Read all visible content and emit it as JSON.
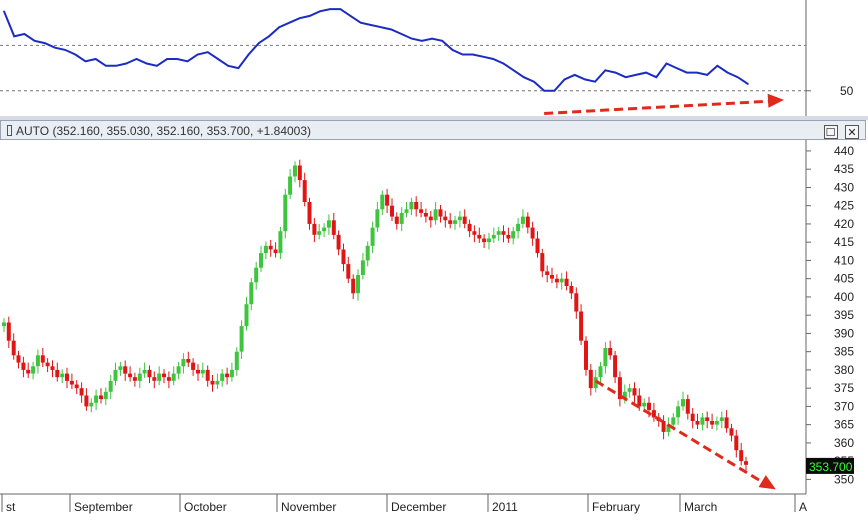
{
  "window": {
    "title": "AUTO (352.160, 355.030, 352.160, 353.700, +1.84003)",
    "maximize_glyph": "☐",
    "close_glyph": "✕"
  },
  "icons": {
    "chart_window": "chart-window-icon",
    "maximize": "maximize-icon",
    "close": "close-icon"
  },
  "colors": {
    "up": "#3ec43e",
    "down": "#e01515",
    "indicator": "#1c2cc0",
    "arrow": "#e02a1c",
    "price_tag_bg": "#0a0a0a",
    "price_tag_fg": "#33ff33"
  },
  "chart_data": [
    {
      "type": "line",
      "title": "",
      "y_tick_labels": [
        "50"
      ],
      "reference_lines": [
        70,
        50
      ],
      "ylim": [
        38,
        90
      ],
      "series": [
        {
          "values": [
            85,
            74,
            75,
            72,
            71,
            69,
            68,
            66,
            63,
            64,
            61,
            61,
            62,
            64,
            62,
            61,
            64,
            64,
            63,
            66,
            67,
            64,
            61,
            60,
            66,
            71,
            74,
            78,
            80,
            82,
            83,
            85,
            86,
            86,
            83,
            80,
            79,
            78,
            77,
            75,
            73,
            72,
            73,
            72,
            68,
            66,
            66,
            65,
            64,
            62,
            59,
            56,
            54,
            50,
            50,
            55,
            57,
            55,
            54,
            59,
            58,
            56,
            57,
            58,
            56,
            62,
            60,
            58,
            58,
            57,
            61,
            58,
            56,
            53
          ]
        }
      ],
      "trend_arrow": {
        "from": [
          53,
          40
        ],
        "to": [
          73,
          46
        ]
      }
    },
    {
      "type": "candlestick",
      "x_tick_labels": [
        "st",
        "September",
        "October",
        "November",
        "December",
        "2011",
        "February",
        "March",
        "A"
      ],
      "y_tick_labels": [
        "440",
        "435",
        "430",
        "425",
        "420",
        "415",
        "410",
        "405",
        "400",
        "395",
        "390",
        "385",
        "380",
        "375",
        "370",
        "365",
        "360",
        "355",
        "350"
      ],
      "ylim": [
        346,
        443
      ],
      "last_price": "353.700",
      "series": [
        {
          "closes": [
            393,
            388,
            384,
            382,
            380,
            379,
            381,
            384,
            382,
            381,
            380,
            378,
            379,
            377,
            376,
            375,
            373,
            370,
            371,
            373,
            372,
            374,
            377,
            380,
            381,
            379,
            378,
            377,
            379,
            380,
            378,
            377,
            379,
            378,
            377,
            379,
            381,
            383,
            382,
            380,
            379,
            380,
            377,
            376,
            377,
            379,
            378,
            380,
            385,
            392,
            398,
            404,
            408,
            412,
            414,
            413,
            412,
            418,
            428,
            433,
            436,
            432,
            426,
            420,
            417,
            418,
            419,
            421,
            417,
            413,
            409,
            405,
            401,
            406,
            410,
            414,
            419,
            424,
            428,
            425,
            422,
            420,
            423,
            424,
            426,
            424,
            423,
            422,
            421,
            424,
            422,
            421,
            420,
            421,
            422,
            420,
            418,
            417,
            416,
            415,
            416,
            417,
            418,
            417,
            416,
            418,
            420,
            422,
            419,
            416,
            412,
            407,
            406,
            405,
            404,
            405,
            403,
            401,
            396,
            388,
            380,
            375,
            378,
            381,
            386,
            384,
            378,
            372,
            374,
            375,
            373,
            370,
            371,
            369,
            367,
            366,
            363,
            365,
            367,
            370,
            372,
            368,
            366,
            365,
            367,
            366,
            365,
            366,
            367,
            364,
            362,
            358,
            355,
            354
          ]
        }
      ],
      "trend_arrow": {
        "from": [
          122,
          377
        ],
        "to": [
          154,
          350
        ]
      }
    }
  ]
}
